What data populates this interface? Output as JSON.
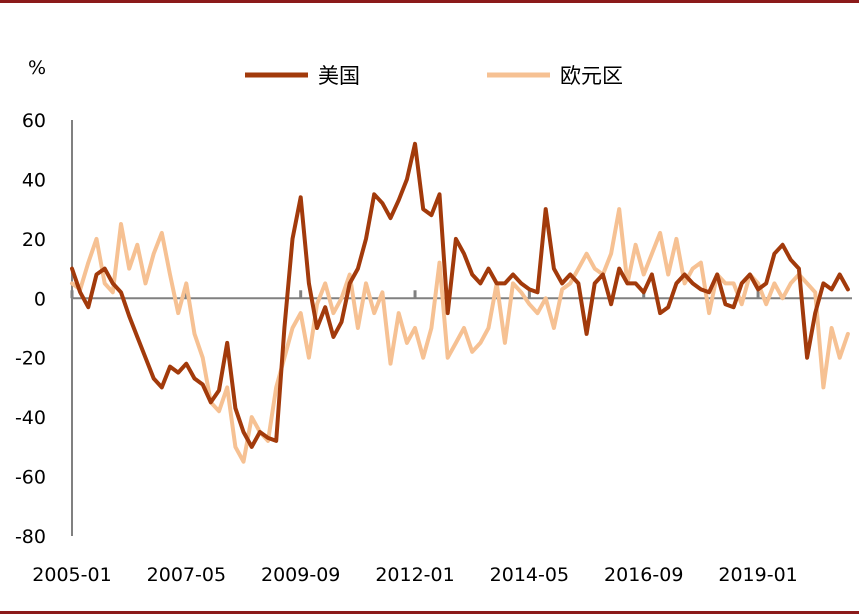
{
  "chart_data": {
    "type": "line",
    "ylabel": "%",
    "ylim": [
      -80,
      60
    ],
    "yticks": [
      "60",
      "40",
      "20",
      "0",
      "-20",
      "-40",
      "-60",
      "-80"
    ],
    "xlim": [
      "2005-01",
      "2020-12"
    ],
    "xticks": [
      "2005-01",
      "2007-05",
      "2009-09",
      "2012-01",
      "2014-05",
      "2016-09",
      "2019-01"
    ],
    "legend_position": "top",
    "grid": false,
    "colors": {
      "us": "#a23a0b",
      "eurozone": "#f6c193",
      "axis": "#808080",
      "frame": "#8b1a1a"
    },
    "series": [
      {
        "name": "美国",
        "color": "#a23a0b",
        "x": [
          "2005-01",
          "2005-03",
          "2005-05",
          "2005-07",
          "2005-09",
          "2005-11",
          "2006-01",
          "2006-03",
          "2006-05",
          "2006-07",
          "2006-09",
          "2006-11",
          "2007-01",
          "2007-03",
          "2007-05",
          "2007-07",
          "2007-09",
          "2007-11",
          "2008-01",
          "2008-03",
          "2008-05",
          "2008-07",
          "2008-09",
          "2008-11",
          "2009-01",
          "2009-03",
          "2009-05",
          "2009-07",
          "2009-09",
          "2009-11",
          "2010-01",
          "2010-03",
          "2010-05",
          "2010-07",
          "2010-09",
          "2010-11",
          "2011-01",
          "2011-03",
          "2011-05",
          "2011-07",
          "2011-09",
          "2011-11",
          "2012-01",
          "2012-03",
          "2012-05",
          "2012-07",
          "2012-09",
          "2012-11",
          "2013-01",
          "2013-03",
          "2013-05",
          "2013-07",
          "2013-09",
          "2013-11",
          "2014-01",
          "2014-03",
          "2014-05",
          "2014-07",
          "2014-09",
          "2014-11",
          "2015-01",
          "2015-03",
          "2015-05",
          "2015-07",
          "2015-09",
          "2015-11",
          "2016-01",
          "2016-03",
          "2016-05",
          "2016-07",
          "2016-09",
          "2016-11",
          "2017-01",
          "2017-03",
          "2017-05",
          "2017-07",
          "2017-09",
          "2017-11",
          "2018-01",
          "2018-03",
          "2018-05",
          "2018-07",
          "2018-09",
          "2018-11",
          "2019-01",
          "2019-03",
          "2019-05",
          "2019-07",
          "2019-09",
          "2019-11",
          "2020-01",
          "2020-03",
          "2020-05",
          "2020-07",
          "2020-09",
          "2020-11"
        ],
        "values": [
          10,
          2,
          -3,
          8,
          10,
          5,
          2,
          -6,
          -13,
          -20,
          -27,
          -30,
          -23,
          -25,
          -22,
          -27,
          -29,
          -35,
          -31,
          -15,
          -37,
          -45,
          -50,
          -45,
          -47,
          -48,
          -10,
          20,
          34,
          5,
          -10,
          -3,
          -13,
          -8,
          5,
          10,
          20,
          35,
          32,
          27,
          33,
          40,
          52,
          30,
          28,
          35,
          -5,
          20,
          15,
          8,
          5,
          10,
          5,
          5,
          8,
          5,
          3,
          2,
          30,
          10,
          5,
          8,
          5,
          -12,
          5,
          8,
          -2,
          10,
          5,
          5,
          2,
          8,
          -5,
          -3,
          5,
          8,
          5,
          3,
          2,
          8,
          -2,
          -3,
          5,
          8,
          3,
          5,
          15,
          18,
          13,
          10,
          -20,
          -5,
          5,
          3,
          8,
          3
        ]
      },
      {
        "name": "欧元区",
        "color": "#f6c193",
        "x": [
          "2005-01",
          "2005-03",
          "2005-05",
          "2005-07",
          "2005-09",
          "2005-11",
          "2006-01",
          "2006-03",
          "2006-05",
          "2006-07",
          "2006-09",
          "2006-11",
          "2007-01",
          "2007-03",
          "2007-05",
          "2007-07",
          "2007-09",
          "2007-11",
          "2008-01",
          "2008-03",
          "2008-05",
          "2008-07",
          "2008-09",
          "2008-11",
          "2009-01",
          "2009-03",
          "2009-05",
          "2009-07",
          "2009-09",
          "2009-11",
          "2010-01",
          "2010-03",
          "2010-05",
          "2010-07",
          "2010-09",
          "2010-11",
          "2011-01",
          "2011-03",
          "2011-05",
          "2011-07",
          "2011-09",
          "2011-11",
          "2012-01",
          "2012-03",
          "2012-05",
          "2012-07",
          "2012-09",
          "2012-11",
          "2013-01",
          "2013-03",
          "2013-05",
          "2013-07",
          "2013-09",
          "2013-11",
          "2014-01",
          "2014-03",
          "2014-05",
          "2014-07",
          "2014-09",
          "2014-11",
          "2015-01",
          "2015-03",
          "2015-05",
          "2015-07",
          "2015-09",
          "2015-11",
          "2016-01",
          "2016-03",
          "2016-05",
          "2016-07",
          "2016-09",
          "2016-11",
          "2017-01",
          "2017-03",
          "2017-05",
          "2017-07",
          "2017-09",
          "2017-11",
          "2018-01",
          "2018-03",
          "2018-05",
          "2018-07",
          "2018-09",
          "2018-11",
          "2019-01",
          "2019-03",
          "2019-05",
          "2019-07",
          "2019-09",
          "2019-11",
          "2020-01",
          "2020-03",
          "2020-05",
          "2020-07",
          "2020-09",
          "2020-11"
        ],
        "values": [
          5,
          3,
          12,
          20,
          5,
          2,
          25,
          10,
          18,
          5,
          15,
          22,
          8,
          -5,
          5,
          -12,
          -20,
          -35,
          -38,
          -30,
          -50,
          -55,
          -40,
          -45,
          -48,
          -30,
          -20,
          -10,
          -5,
          -20,
          -2,
          5,
          -5,
          0,
          8,
          -10,
          5,
          -5,
          2,
          -22,
          -5,
          -15,
          -10,
          -20,
          -10,
          12,
          -20,
          -15,
          -10,
          -18,
          -15,
          -10,
          5,
          -15,
          5,
          2,
          -2,
          -5,
          0,
          -10,
          3,
          5,
          10,
          15,
          10,
          8,
          15,
          30,
          5,
          18,
          8,
          15,
          22,
          8,
          20,
          5,
          10,
          12,
          -5,
          8,
          5,
          5,
          -2,
          8,
          5,
          -2,
          5,
          0,
          5,
          8,
          5,
          2,
          -30,
          -10,
          -20,
          -12
        ]
      }
    ]
  }
}
